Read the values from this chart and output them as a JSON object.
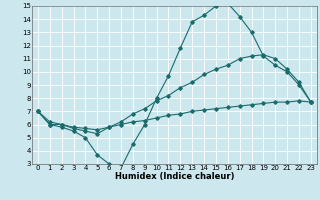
{
  "xlabel": "Humidex (Indice chaleur)",
  "ylabel": "",
  "bg_color": "#cce8ee",
  "grid_color": "#ffffff",
  "line_color": "#1a6b6b",
  "xlim": [
    -0.5,
    23.5
  ],
  "ylim": [
    3,
    15
  ],
  "xticks": [
    0,
    1,
    2,
    3,
    4,
    5,
    6,
    7,
    8,
    9,
    10,
    11,
    12,
    13,
    14,
    15,
    16,
    17,
    18,
    19,
    20,
    21,
    22,
    23
  ],
  "yticks": [
    3,
    4,
    5,
    6,
    7,
    8,
    9,
    10,
    11,
    12,
    13,
    14,
    15
  ],
  "line1_x": [
    0,
    1,
    2,
    3,
    4,
    5,
    6,
    7,
    8,
    9,
    10,
    11,
    12,
    13,
    14,
    15,
    16,
    17,
    18,
    19,
    20,
    21,
    22,
    23
  ],
  "line1_y": [
    7.0,
    6.0,
    5.8,
    5.5,
    5.0,
    3.7,
    3.0,
    2.7,
    4.5,
    6.0,
    8.0,
    9.7,
    11.8,
    13.8,
    14.3,
    15.0,
    15.2,
    14.2,
    13.0,
    11.2,
    10.5,
    10.0,
    9.0,
    7.7
  ],
  "line2_x": [
    0,
    1,
    2,
    3,
    4,
    5,
    6,
    7,
    8,
    9,
    10,
    11,
    12,
    13,
    14,
    15,
    16,
    17,
    18,
    19,
    20,
    21,
    22,
    23
  ],
  "line2_y": [
    7.0,
    6.2,
    6.0,
    5.7,
    5.5,
    5.3,
    5.8,
    6.2,
    6.8,
    7.2,
    7.8,
    8.2,
    8.8,
    9.2,
    9.8,
    10.2,
    10.5,
    11.0,
    11.2,
    11.3,
    11.0,
    10.2,
    9.2,
    7.7
  ],
  "line3_x": [
    0,
    1,
    2,
    3,
    4,
    5,
    6,
    7,
    8,
    9,
    10,
    11,
    12,
    13,
    14,
    15,
    16,
    17,
    18,
    19,
    20,
    21,
    22,
    23
  ],
  "line3_y": [
    7.0,
    6.0,
    6.0,
    5.8,
    5.7,
    5.6,
    5.8,
    6.0,
    6.2,
    6.3,
    6.5,
    6.7,
    6.8,
    7.0,
    7.1,
    7.2,
    7.3,
    7.4,
    7.5,
    7.6,
    7.7,
    7.7,
    7.8,
    7.7
  ],
  "tick_fontsize": 5,
  "xlabel_fontsize": 6,
  "marker_size": 1.8,
  "line_width": 0.8
}
